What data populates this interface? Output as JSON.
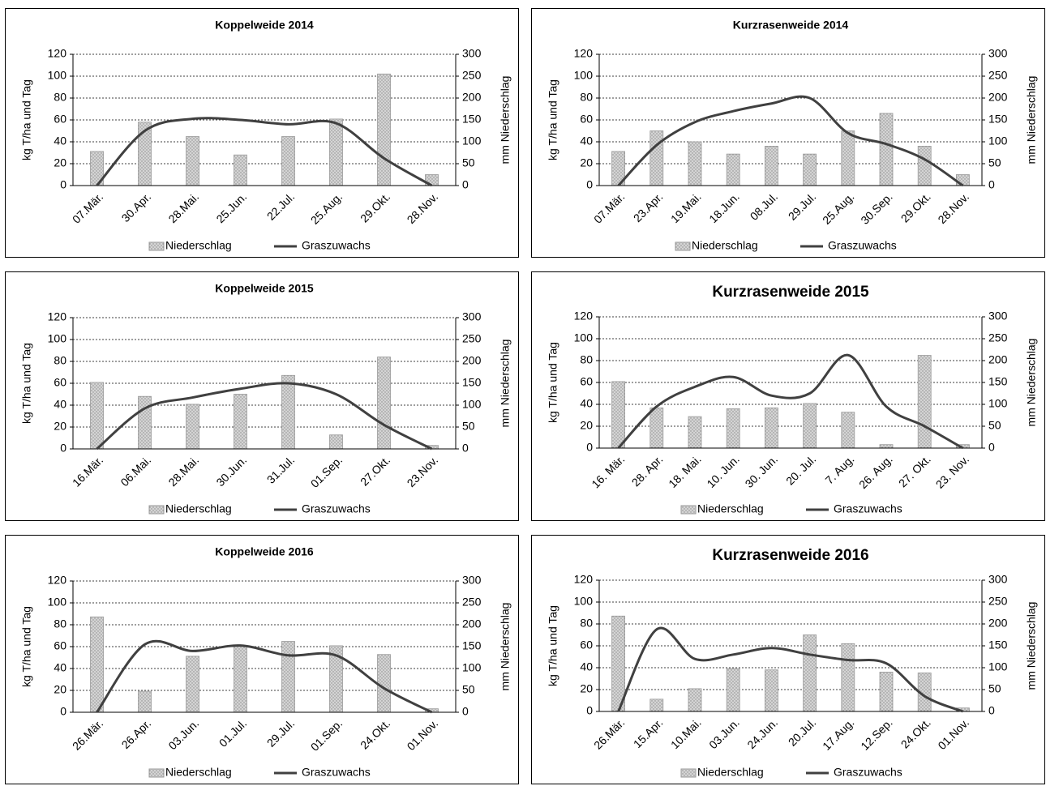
{
  "chart_data": [
    {
      "type": "combo",
      "title": "Koppelweide 2014",
      "ylabel": "kg T/ha und Tag",
      "y2label": "mm Niederschlag",
      "categories": [
        "07.Mär.",
        "30.Apr.",
        "28.Mai.",
        "25.Jun.",
        "22.Jul.",
        "25.Aug.",
        "29.Okt.",
        "28.Nov."
      ],
      "series": [
        {
          "name": "Niederschlag",
          "kind": "bar",
          "axis": "y2",
          "color": "#d4d4d4",
          "values": [
            78,
            145,
            112,
            70,
            112,
            152,
            255,
            25
          ]
        },
        {
          "name": "Graszuwachs",
          "kind": "line",
          "axis": "y",
          "color": "#404040",
          "values": [
            0,
            50,
            61,
            60,
            56,
            57,
            25,
            0
          ]
        }
      ],
      "ylim": [
        0,
        120
      ],
      "yticks": [
        0,
        20,
        40,
        60,
        80,
        100,
        120
      ],
      "y2lim": [
        0,
        300
      ],
      "y2ticks": [
        0,
        50,
        100,
        150,
        200,
        250,
        300
      ],
      "grid": true,
      "legend": "bottom"
    },
    {
      "type": "combo",
      "title": "Kurzrasenweide 2014",
      "ylabel": "kg T/ha und Tag",
      "y2label": "mm Niederschlag",
      "categories": [
        "07.Mär.",
        "23.Apr.",
        "19.Mai.",
        "18.Jun.",
        "08.Jul.",
        "29.Jul.",
        "25.Aug.",
        "30.Sep.",
        "29.Okt.",
        "28.Nov."
      ],
      "series": [
        {
          "name": "Niederschlag",
          "kind": "bar",
          "axis": "y2",
          "color": "#d4d4d4",
          "values": [
            78,
            125,
            100,
            72,
            90,
            72,
            125,
            165,
            90,
            25
          ]
        },
        {
          "name": "Graszuwachs",
          "kind": "line",
          "axis": "y",
          "color": "#404040",
          "values": [
            0,
            37,
            58,
            68,
            75,
            80,
            48,
            38,
            24,
            0
          ]
        }
      ],
      "ylim": [
        0,
        120
      ],
      "yticks": [
        0,
        20,
        40,
        60,
        80,
        100,
        120
      ],
      "y2lim": [
        0,
        300
      ],
      "y2ticks": [
        0,
        50,
        100,
        150,
        200,
        250,
        300
      ],
      "grid": true,
      "legend": "bottom"
    },
    {
      "type": "combo",
      "title": "Koppelweide 2015",
      "ylabel": "kg T/ha und Tag",
      "y2label": "mm Niederschlag",
      "categories": [
        "16.Mär.",
        "06.Mai.",
        "28.Mai.",
        "30.Jun.",
        "31.Jul.",
        "01.Sep.",
        "27.Okt.",
        "23.Nov."
      ],
      "series": [
        {
          "name": "Niederschlag",
          "kind": "bar",
          "axis": "y2",
          "color": "#d4d4d4",
          "values": [
            152,
            120,
            102,
            125,
            168,
            32,
            210,
            8
          ]
        },
        {
          "name": "Graszuwachs",
          "kind": "line",
          "axis": "y",
          "color": "#404040",
          "values": [
            0,
            37,
            47,
            55,
            60,
            50,
            22,
            0
          ]
        }
      ],
      "ylim": [
        0,
        120
      ],
      "yticks": [
        0,
        20,
        40,
        60,
        80,
        100,
        120
      ],
      "y2lim": [
        0,
        300
      ],
      "y2ticks": [
        0,
        50,
        100,
        150,
        200,
        250,
        300
      ],
      "grid": true,
      "legend": "bottom"
    },
    {
      "type": "combo",
      "title": "Kurzrasenweide 2015",
      "ylabel": "kg T/ha und Tag",
      "y2label": "mm Niederschlag",
      "categories": [
        "16. Mär.",
        "28. Apr.",
        "18. Mai.",
        "10. Jun.",
        "30. Jun.",
        "20. Jul.",
        "7. Aug.",
        "26. Aug.",
        "27. Okt.",
        "23. Nov."
      ],
      "series": [
        {
          "name": "Niederschlag",
          "kind": "bar",
          "axis": "y2",
          "color": "#d4d4d4",
          "values": [
            152,
            92,
            72,
            90,
            92,
            102,
            82,
            8,
            212,
            8
          ]
        },
        {
          "name": "Graszuwachs",
          "kind": "line",
          "axis": "y",
          "color": "#404040",
          "values": [
            0,
            38,
            56,
            65,
            48,
            50,
            85,
            38,
            20,
            0
          ]
        }
      ],
      "ylim": [
        0,
        120
      ],
      "yticks": [
        0,
        20,
        40,
        60,
        80,
        100,
        120
      ],
      "y2lim": [
        0,
        300
      ],
      "y2ticks": [
        0,
        50,
        100,
        150,
        200,
        250,
        300
      ],
      "grid": true,
      "legend": "bottom"
    },
    {
      "type": "combo",
      "title": "Koppelweide 2016",
      "ylabel": "kg T/ha und Tag",
      "y2label": "mm Niederschlag",
      "categories": [
        "26.Mär.",
        "26.Apr.",
        "03.Jun.",
        "01.Jul.",
        "29.Jul.",
        "01.Sep.",
        "24.Okt.",
        "01.Nov."
      ],
      "series": [
        {
          "name": "Niederschlag",
          "kind": "bar",
          "axis": "y2",
          "color": "#d4d4d4",
          "values": [
            218,
            48,
            128,
            152,
            162,
            152,
            132,
            8
          ]
        },
        {
          "name": "Graszuwachs",
          "kind": "line",
          "axis": "y",
          "color": "#404040",
          "values": [
            0,
            62,
            56,
            61,
            52,
            52,
            22,
            0
          ]
        }
      ],
      "ylim": [
        0,
        120
      ],
      "yticks": [
        0,
        20,
        40,
        60,
        80,
        100,
        120
      ],
      "y2lim": [
        0,
        300
      ],
      "y2ticks": [
        0,
        50,
        100,
        150,
        200,
        250,
        300
      ],
      "grid": true,
      "legend": "bottom"
    },
    {
      "type": "combo",
      "title": "Kurzrasenweide 2016",
      "ylabel": "kg T/ha und Tag",
      "y2label": "mm Niederschlag",
      "categories": [
        "26.Mär.",
        "15.Apr.",
        "10.Mai.",
        "03.Jun.",
        "24.Jun.",
        "20.Jul.",
        "17.Aug.",
        "12.Sep.",
        "24.Okt.",
        "01.Nov."
      ],
      "series": [
        {
          "name": "Niederschlag",
          "kind": "bar",
          "axis": "y2",
          "color": "#d4d4d4",
          "values": [
            218,
            28,
            52,
            98,
            95,
            175,
            155,
            90,
            88,
            8
          ]
        },
        {
          "name": "Graszuwachs",
          "kind": "line",
          "axis": "y",
          "color": "#404040",
          "values": [
            0,
            75,
            48,
            52,
            58,
            52,
            47,
            44,
            14,
            0
          ]
        }
      ],
      "ylim": [
        0,
        120
      ],
      "yticks": [
        0,
        20,
        40,
        60,
        80,
        100,
        120
      ],
      "y2lim": [
        0,
        300
      ],
      "y2ticks": [
        0,
        50,
        100,
        150,
        200,
        250,
        300
      ],
      "grid": true,
      "legend": "bottom"
    }
  ]
}
